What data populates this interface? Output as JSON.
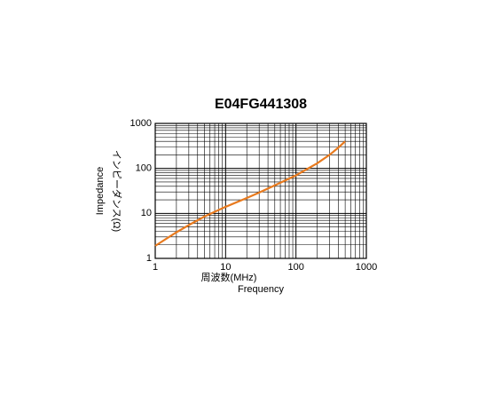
{
  "chart_data": {
    "type": "line",
    "title": "E04FG441308",
    "x_label": "周波数(MHz)",
    "x_label_en": "Frequency",
    "y_label": "インピーダンス(Ω)",
    "y_label_en": "Impedance",
    "x_scale": "log",
    "y_scale": "log",
    "grid": true,
    "xlim": [
      1,
      1000
    ],
    "ylim": [
      1,
      1000
    ],
    "xticks": [
      1,
      10,
      100,
      1000
    ],
    "yticks": [
      1,
      10,
      100,
      1000
    ],
    "xminorticks": [
      2,
      3,
      4,
      5,
      6,
      7,
      8,
      9,
      20,
      30,
      40,
      50,
      60,
      70,
      80,
      90,
      200,
      300,
      400,
      500,
      600,
      700,
      800,
      900
    ],
    "yminorticks": [
      2,
      3,
      4,
      5,
      6,
      7,
      8,
      9,
      20,
      30,
      40,
      50,
      60,
      70,
      80,
      90,
      200,
      300,
      400,
      500,
      600,
      700,
      800,
      900
    ],
    "x": [
      1,
      2,
      3,
      5,
      10,
      20,
      30,
      50,
      100,
      200,
      300,
      400,
      500
    ],
    "series": [
      {
        "color": "#e87a1e",
        "values": [
          1.9,
          3.8,
          5.5,
          8.5,
          14,
          22,
          29,
          42,
          70,
          130,
          200,
          290,
          400
        ]
      }
    ]
  }
}
